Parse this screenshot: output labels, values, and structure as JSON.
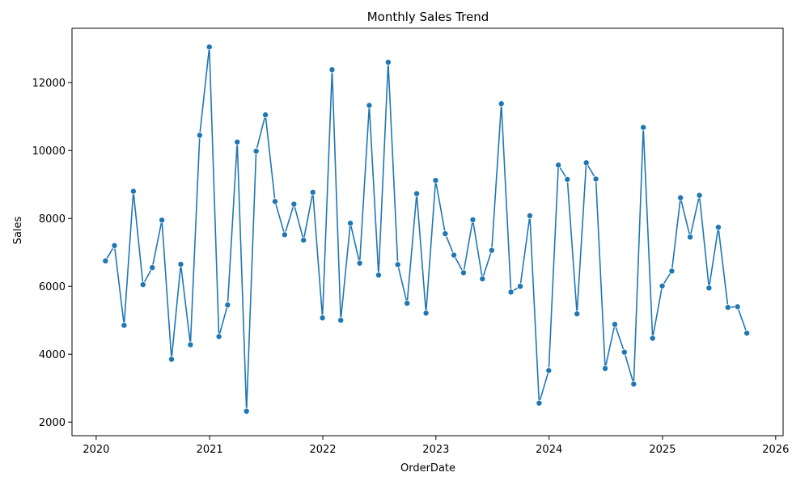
{
  "chart_data": {
    "type": "line",
    "title": "Monthly Sales Trend",
    "xlabel": "OrderDate",
    "ylabel": "Sales",
    "xlim": [
      "2019-10-15",
      "2026-01-25"
    ],
    "ylim": [
      1600,
      13600
    ],
    "x_ticks": [
      "2020",
      "2021",
      "2022",
      "2023",
      "2024",
      "2025",
      "2026"
    ],
    "y_ticks": [
      "2000",
      "4000",
      "6000",
      "8000",
      "10000",
      "12000"
    ],
    "grid": false,
    "legend": "none",
    "marker": "circle",
    "color": "#1f77b4",
    "series": [
      {
        "x": [
          "2020-01-31",
          "2020-02-29",
          "2020-03-31",
          "2020-04-30",
          "2020-05-31",
          "2020-06-30",
          "2020-07-31",
          "2020-08-31",
          "2020-09-30",
          "2020-10-31",
          "2020-11-30",
          "2020-12-31",
          "2021-01-31",
          "2021-02-28",
          "2021-03-31",
          "2021-04-30",
          "2021-05-31",
          "2021-06-30",
          "2021-07-31",
          "2021-08-31",
          "2021-09-30",
          "2021-10-31",
          "2021-11-30",
          "2021-12-31",
          "2022-01-31",
          "2022-02-28",
          "2022-03-31",
          "2022-04-30",
          "2022-05-31",
          "2022-06-30",
          "2022-07-31",
          "2022-08-31",
          "2022-09-30",
          "2022-10-31",
          "2022-11-30",
          "2022-12-31",
          "2023-01-31",
          "2023-02-28",
          "2023-03-31",
          "2023-04-30",
          "2023-05-31",
          "2023-06-30",
          "2023-07-31",
          "2023-08-31",
          "2023-09-30",
          "2023-10-31",
          "2023-11-30",
          "2023-12-31",
          "2024-01-31",
          "2024-02-29",
          "2024-03-31",
          "2024-04-30",
          "2024-05-31",
          "2024-06-30",
          "2024-07-31",
          "2024-08-31",
          "2024-09-30",
          "2024-10-31",
          "2024-11-30",
          "2024-12-31",
          "2025-01-31",
          "2025-02-28",
          "2025-03-31",
          "2025-04-30",
          "2025-05-31",
          "2025-06-30",
          "2025-07-31",
          "2025-08-31",
          "2025-09-30"
        ],
        "values": [
          6750,
          7200,
          4850,
          8800,
          6050,
          6550,
          7950,
          3850,
          6650,
          4280,
          10450,
          13050,
          4520,
          5450,
          10250,
          2320,
          9980,
          11050,
          8500,
          7520,
          8420,
          7360,
          8770,
          5070,
          12380,
          5000,
          7860,
          6680,
          11330,
          6330,
          12600,
          6640,
          5500,
          8730,
          5210,
          9120,
          7550,
          6920,
          6400,
          7960,
          6220,
          7060,
          11380,
          5830,
          6000,
          8080,
          2560,
          3520,
          9570,
          9150,
          5190,
          9640,
          9160,
          3580,
          4880,
          4060,
          3120,
          10680,
          4470,
          6010,
          6450,
          8610,
          7450,
          8680,
          5950,
          7740,
          5380,
          5400,
          4620
        ]
      }
    ]
  }
}
